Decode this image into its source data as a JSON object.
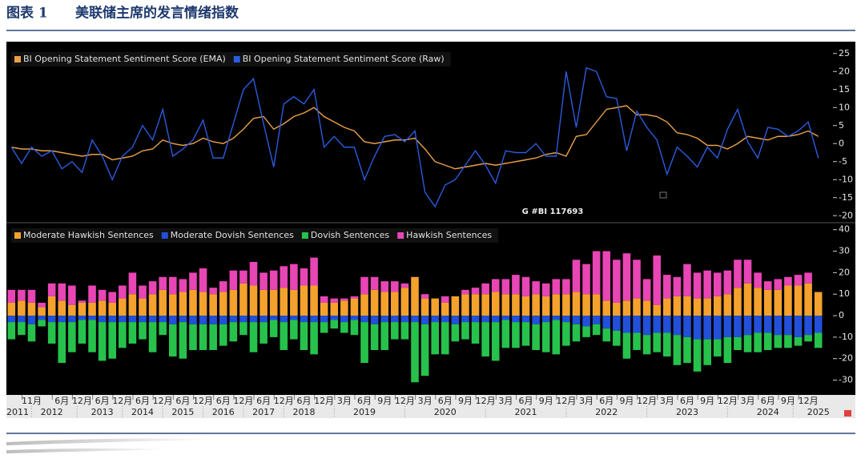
{
  "figure_label": "图表 1",
  "title": "美联储主席的发言情绪指数",
  "watermark": "G #BI 117693",
  "chart_data": [
    {
      "type": "line",
      "ylim": [
        -21.5,
        26.5
      ],
      "yticks": [
        -20,
        -15,
        -10,
        -5,
        0,
        5,
        10,
        15,
        20,
        25
      ],
      "series": [
        {
          "name": "BI Opening Statement Sentiment Score (EMA)",
          "color": "#e8a04a",
          "values": [
            -1,
            -1.5,
            -1.5,
            -2,
            -2,
            -2.5,
            -3,
            -3.5,
            -3,
            -3,
            -4.5,
            -4,
            -3.5,
            -2,
            -1.5,
            1,
            0,
            -0.5,
            0,
            1.5,
            0.5,
            0,
            1.5,
            4,
            7,
            7.5,
            4,
            5.5,
            7.5,
            8.5,
            10,
            7.5,
            6,
            4.5,
            3.5,
            0.5,
            0,
            0.5,
            1,
            1,
            1.5,
            -1.5,
            -5,
            -6,
            -7,
            -6.5,
            -6,
            -5.5,
            -6,
            -5.5,
            -5,
            -4.5,
            -4,
            -3,
            -2.5,
            -3.5,
            2,
            2.5,
            6,
            9.5,
            10,
            10.5,
            8,
            8,
            7.5,
            6,
            3,
            2.5,
            1.5,
            -0.5,
            -0.5,
            -1.5,
            0,
            2,
            1.5,
            1,
            2,
            2,
            2.5,
            3.5,
            2
          ]
        },
        {
          "name": "BI Opening Statement Sentiment Score (Raw)",
          "color": "#2b5bde",
          "values": [
            -1,
            -5.5,
            -1,
            -3.5,
            -2,
            -7,
            -5,
            -8,
            1,
            -3.5,
            -10,
            -3.5,
            -1,
            5,
            1,
            9.5,
            -3.5,
            -1.5,
            1,
            6.5,
            -4,
            -4,
            5.5,
            15,
            18,
            5.5,
            -6.5,
            11,
            13,
            11,
            15,
            -1,
            2,
            -1,
            -1,
            -10,
            -3.5,
            2,
            2.5,
            0.5,
            3.5,
            -13.5,
            -17.5,
            -11.5,
            -10,
            -6,
            -2,
            -6,
            -11,
            -2,
            -2.5,
            -2.5,
            0,
            -3.5,
            -3.5,
            20,
            4.5,
            21,
            20,
            13,
            12.5,
            -2,
            9,
            4.5,
            1,
            -8.5,
            -1,
            -3.5,
            -6.5,
            -1,
            -4,
            4,
            9.5,
            0.5,
            -4,
            4.5,
            4,
            2,
            3.5,
            6,
            -4
          ]
        }
      ]
    },
    {
      "type": "bar",
      "ylim": [
        -36.5,
        42.5
      ],
      "yticks": [
        -30,
        -20,
        -10,
        0,
        10,
        20,
        30,
        40
      ],
      "categories": [
        null,
        null,
        "11月",
        null,
        null,
        "6月",
        null,
        "12月",
        null,
        "6月",
        null,
        "12月",
        null,
        "6月",
        null,
        "12月",
        null,
        "6月",
        null,
        "12月",
        null,
        "6月",
        null,
        "12月",
        null,
        "6月",
        null,
        "12月",
        null,
        "6月",
        null,
        "12月",
        null,
        "3月",
        null,
        "6月",
        null,
        "9月",
        null,
        "12月",
        null,
        "3月",
        null,
        "6月",
        null,
        "9月",
        null,
        "12月",
        null,
        "3月",
        null,
        "6月",
        null,
        "9月",
        null,
        "12月",
        null,
        "3月",
        null,
        "6月",
        null,
        "9月",
        null,
        "12月",
        null,
        "3月",
        null,
        "6月",
        null,
        "9月",
        null,
        "12月",
        null,
        "3月",
        null,
        "6月",
        null,
        "9月",
        null,
        "12月",
        null
      ],
      "years": [
        "2011",
        null,
        null,
        null,
        "2012",
        null,
        null,
        null,
        null,
        "2013",
        null,
        null,
        null,
        "2014",
        null,
        null,
        null,
        "2015",
        null,
        null,
        null,
        "2016",
        null,
        null,
        null,
        "2017",
        null,
        null,
        null,
        "2018",
        null,
        null,
        null,
        null,
        null,
        "2019",
        null,
        null,
        null,
        null,
        null,
        null,
        null,
        "2020",
        null,
        null,
        null,
        null,
        null,
        null,
        null,
        "2021",
        null,
        null,
        null,
        null,
        null,
        null,
        null,
        "2022",
        null,
        null,
        null,
        null,
        null,
        null,
        null,
        "2023",
        null,
        null,
        null,
        null,
        null,
        null,
        null,
        "2024",
        null,
        null,
        null,
        null,
        "2025"
      ],
      "series": [
        {
          "name": "Moderate Hawkish Sentences",
          "color": "#f4a22d",
          "values": [
            6,
            7,
            6,
            4,
            9,
            7,
            5,
            6,
            6,
            7,
            6,
            8,
            10,
            8,
            10,
            12,
            10,
            11,
            12,
            11,
            10,
            11,
            12,
            15,
            14,
            12,
            12,
            13,
            12,
            14,
            14,
            6,
            6,
            7,
            8,
            10,
            12,
            11,
            11,
            13,
            18,
            8,
            8,
            6,
            9,
            10,
            10,
            10,
            11,
            10,
            10,
            9,
            10,
            9,
            10,
            10,
            11,
            10,
            10,
            7,
            6,
            7,
            8,
            7,
            5,
            8,
            9,
            9,
            8,
            8,
            9,
            10,
            13,
            15,
            13,
            12,
            12,
            14,
            14,
            15,
            11
          ]
        },
        {
          "name": "Moderate Dovish Sentences",
          "color": "#2350d8",
          "values": [
            -3,
            -3,
            -4,
            -2,
            -3,
            -3,
            -3,
            -2,
            -2,
            -3,
            -3,
            -3,
            -3,
            -3,
            -3,
            -3,
            -4,
            -3,
            -4,
            -4,
            -4,
            -4,
            -3,
            -3,
            -3,
            -3,
            -2,
            -3,
            -2,
            -3,
            -3,
            -3,
            -2,
            -3,
            -2,
            -3,
            -4,
            -3,
            -3,
            -3,
            -3,
            -4,
            -3,
            -3,
            -4,
            -3,
            -3,
            -3,
            -3,
            -2,
            -3,
            -3,
            -4,
            -3,
            -2,
            -3,
            -4,
            -5,
            -4,
            -6,
            -7,
            -8,
            -8,
            -9,
            -8,
            -8,
            -9,
            -10,
            -11,
            -11,
            -11,
            -10,
            -10,
            -9,
            -8,
            -8,
            -9,
            -9,
            -10,
            -9,
            -8
          ]
        },
        {
          "name": "Dovish Sentences",
          "color": "#27c24c",
          "values": [
            -8,
            -6,
            -8,
            -3,
            -10,
            -19,
            -14,
            -11,
            -15,
            -18,
            -17,
            -12,
            -10,
            -8,
            -14,
            -6,
            -15,
            -17,
            -12,
            -12,
            -12,
            -10,
            -9,
            -6,
            -14,
            -10,
            -8,
            -13,
            -9,
            -13,
            -15,
            -5,
            -4,
            -5,
            -7,
            -19,
            -12,
            -13,
            -8,
            -8,
            -28,
            -24,
            -15,
            -15,
            -8,
            -8,
            -10,
            -16,
            -18,
            -13,
            -12,
            -11,
            -12,
            -14,
            -16,
            -11,
            -8,
            -5,
            -5,
            -6,
            -7,
            -12,
            -8,
            -9,
            -9,
            -11,
            -14,
            -12,
            -15,
            -12,
            -8,
            -12,
            -6,
            -8,
            -9,
            -8,
            -6,
            -6,
            -4,
            -3,
            -7
          ]
        },
        {
          "name": "Hawkish Sentences",
          "color": "#e845b5",
          "values": [
            6,
            5,
            6,
            2,
            6,
            8,
            9,
            1,
            8,
            5,
            5,
            6,
            10,
            6,
            6,
            6,
            8,
            6,
            8,
            11,
            3,
            5,
            9,
            6,
            11,
            8,
            9,
            10,
            12,
            8,
            13,
            3,
            2,
            1,
            1,
            8,
            6,
            5,
            5,
            2,
            0,
            2,
            0,
            3,
            0,
            2,
            3,
            5,
            6,
            7,
            9,
            9,
            6,
            6,
            7,
            7,
            15,
            14,
            20,
            23,
            20,
            22,
            18,
            10,
            23,
            11,
            9,
            15,
            12,
            13,
            11,
            11,
            13,
            11,
            7,
            4,
            5,
            4,
            5,
            5,
            0
          ]
        }
      ]
    }
  ]
}
